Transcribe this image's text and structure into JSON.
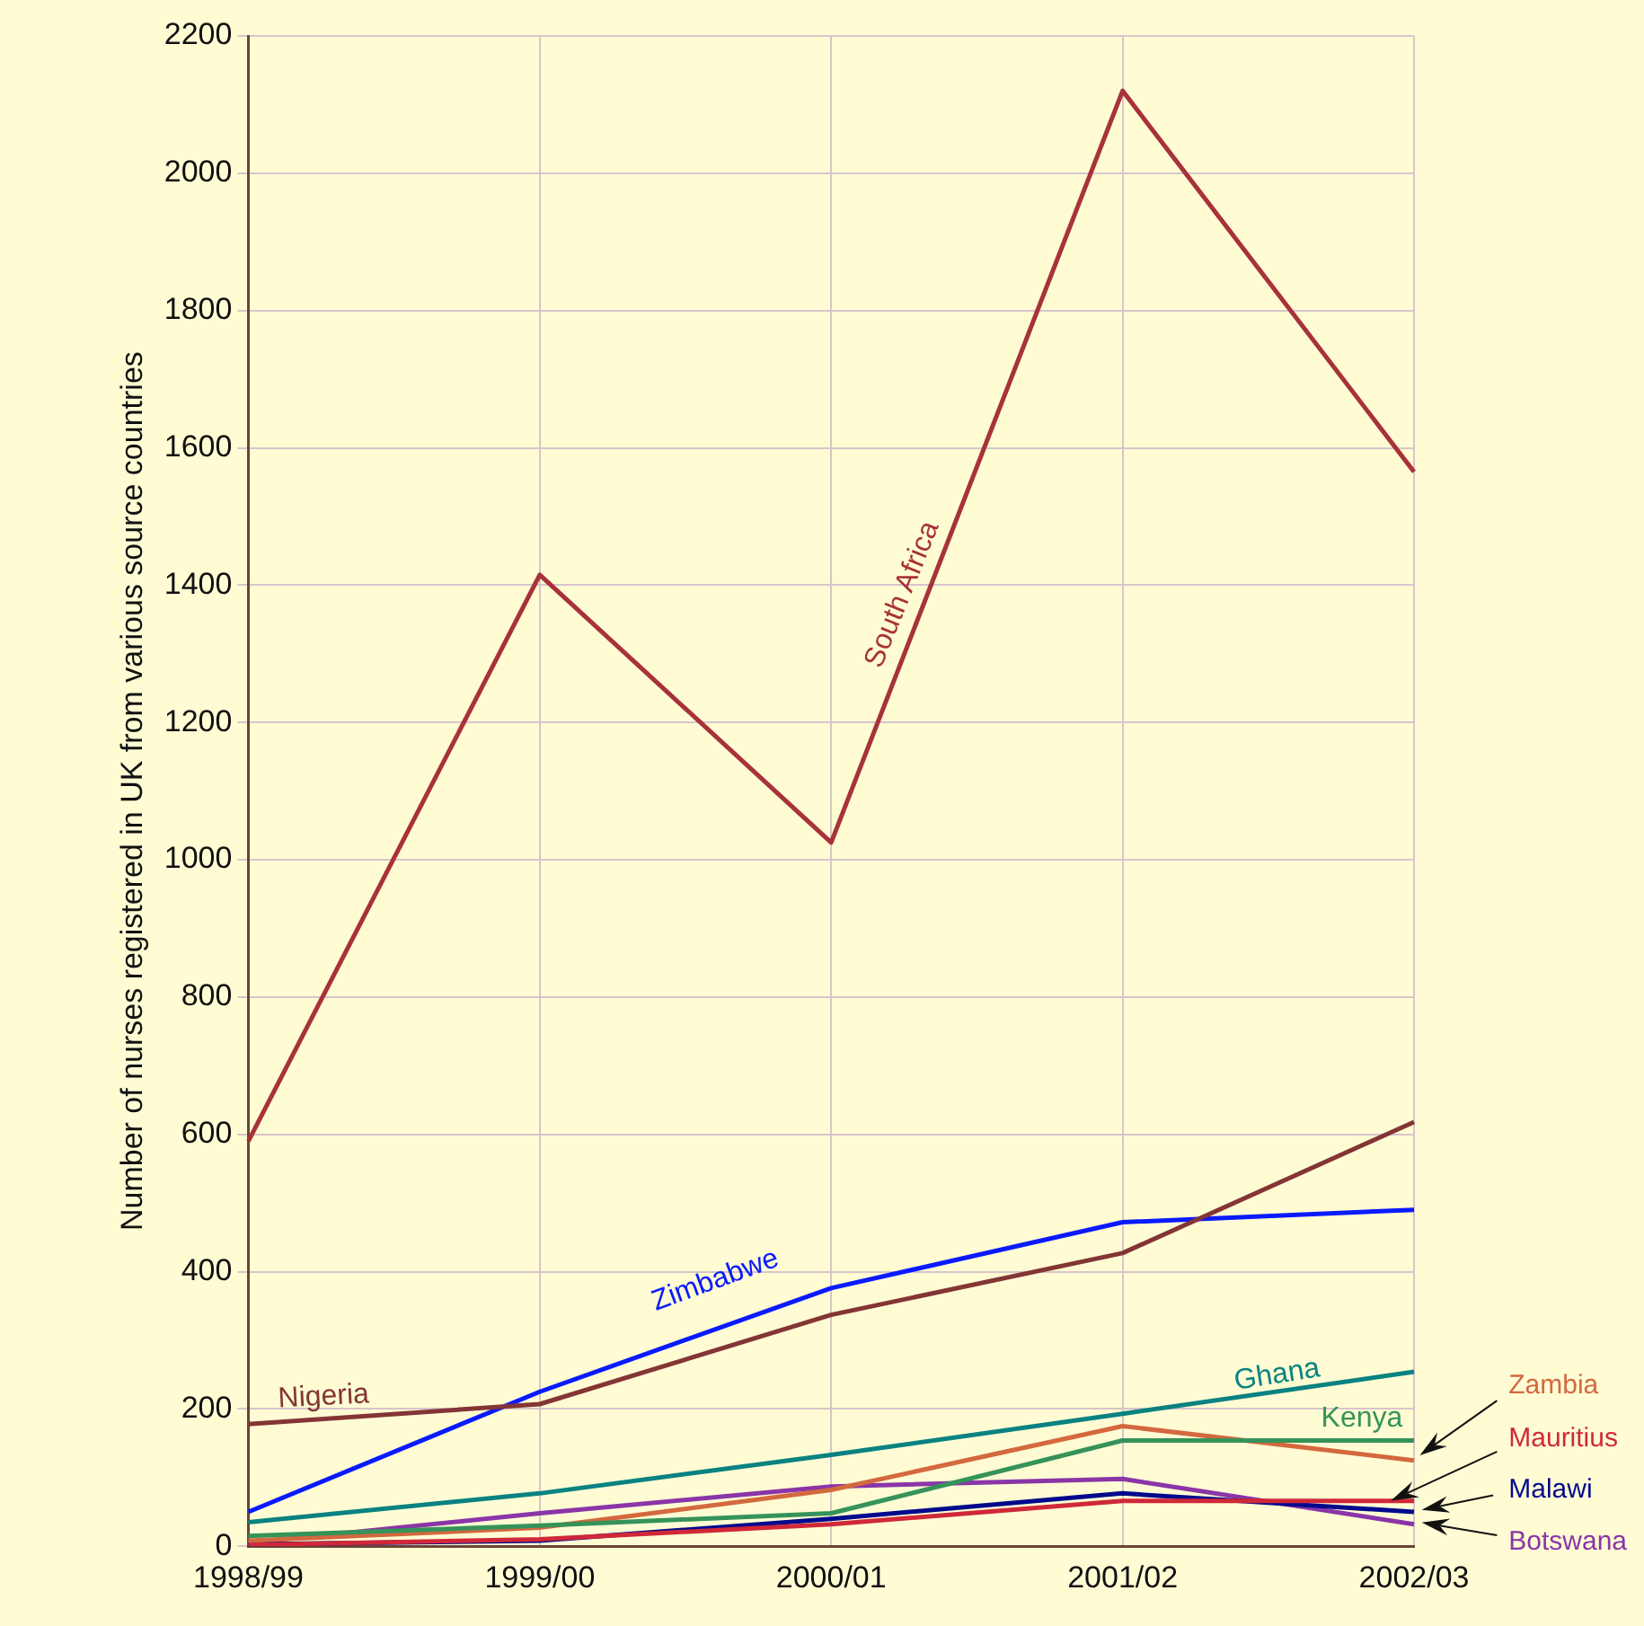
{
  "chart_data": {
    "type": "line",
    "ylabel": "Number of nurses registered in UK from various source countries",
    "categories": [
      "1998/99",
      "1999/00",
      "2000/01",
      "2001/02",
      "2002/03"
    ],
    "series": [
      {
        "name": "South Africa",
        "color": "#a8323a",
        "values": [
          590,
          1415,
          1025,
          2120,
          1565
        ]
      },
      {
        "name": "Nigeria",
        "color": "#843535",
        "values": [
          178,
          207,
          337,
          427,
          618
        ]
      },
      {
        "name": "Zimbabwe",
        "color": "#0a1aff",
        "values": [
          50,
          225,
          376,
          472,
          490
        ]
      },
      {
        "name": "Ghana",
        "color": "#0a8282",
        "values": [
          35,
          77,
          133,
          193,
          254
        ]
      },
      {
        "name": "Kenya",
        "color": "#35935a",
        "values": [
          15,
          30,
          48,
          154,
          154
        ]
      },
      {
        "name": "Zambia",
        "color": "#d4683e",
        "values": [
          8,
          27,
          82,
          175,
          125
        ]
      },
      {
        "name": "Mauritius",
        "color": "#d02838",
        "values": [
          2,
          10,
          32,
          66,
          66
        ]
      },
      {
        "name": "Malawi",
        "color": "#000a8c",
        "values": [
          3,
          8,
          40,
          77,
          50
        ]
      },
      {
        "name": "Botswana",
        "color": "#8a35a8",
        "values": [
          5,
          48,
          87,
          98,
          32
        ]
      }
    ],
    "ylim": [
      0,
      2200
    ],
    "yticks": [
      0,
      200,
      400,
      600,
      800,
      1000,
      1200,
      1400,
      1600,
      1800,
      2000,
      2200
    ],
    "grid": true,
    "legend": false,
    "marker": "none",
    "line_style": "solid"
  }
}
